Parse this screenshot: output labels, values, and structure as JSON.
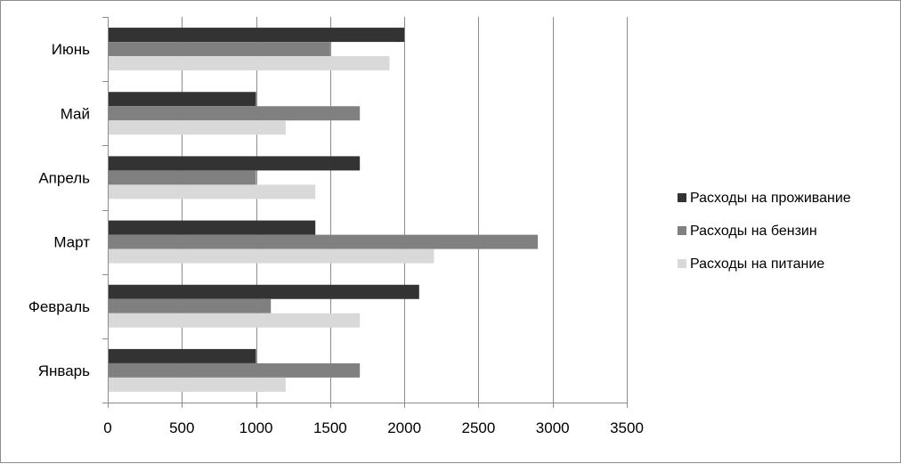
{
  "chart_data": {
    "type": "bar",
    "orientation": "horizontal",
    "categories": [
      "Январь",
      "Февраль",
      "Март",
      "Апрель",
      "Май",
      "Июнь"
    ],
    "series": [
      {
        "name": "Расходы на проживание",
        "color": "#333333",
        "values": [
          1000,
          2100,
          1400,
          1700,
          1000,
          2000
        ]
      },
      {
        "name": "Расходы на бензин",
        "color": "#808080",
        "values": [
          1700,
          1100,
          2900,
          1000,
          1700,
          1500
        ]
      },
      {
        "name": "Расходы на питание",
        "color": "#d9d9d9",
        "values": [
          1200,
          1700,
          2200,
          1400,
          1200,
          1900
        ]
      }
    ],
    "xlim": [
      0,
      3500
    ],
    "xticks": [
      "0",
      "500",
      "1000",
      "1500",
      "2000",
      "2500",
      "3000",
      "3500"
    ],
    "grid": "vertical",
    "legend_position": "right"
  }
}
